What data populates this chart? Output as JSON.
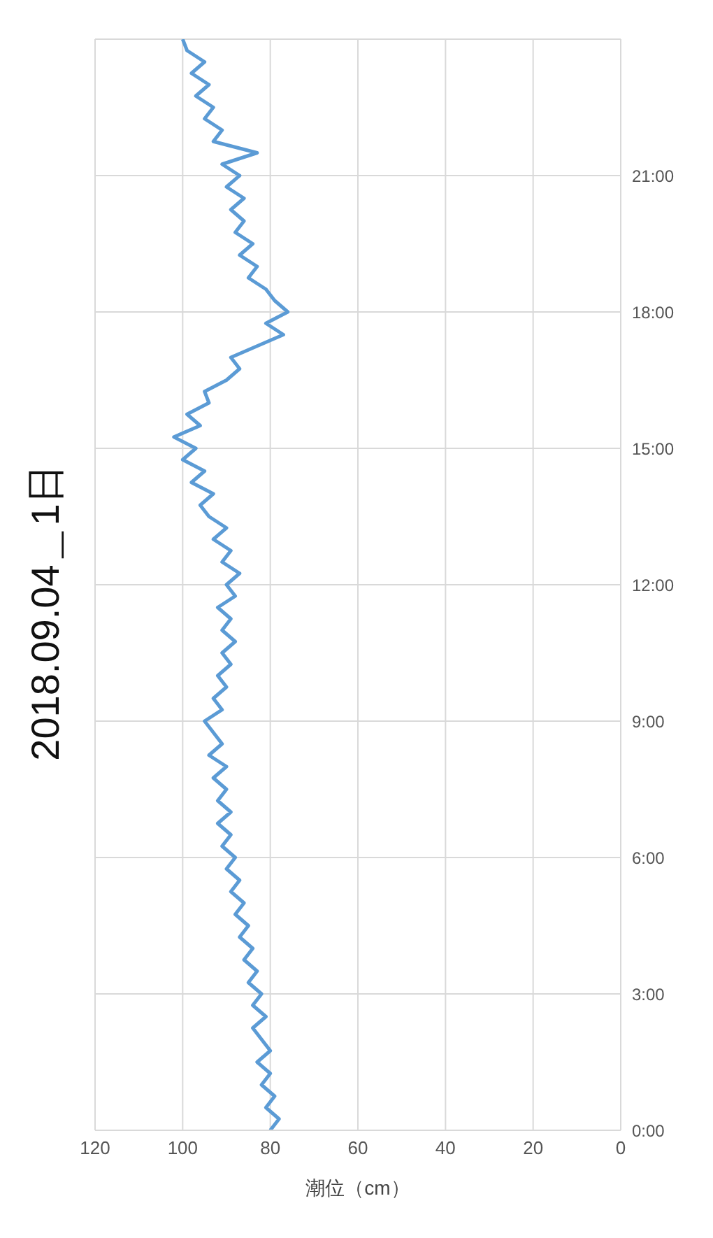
{
  "chart_data": {
    "type": "line",
    "title": "2018.09.04＿1日",
    "xlabel": "潮位（cm）",
    "series": [
      {
        "color": "#5b9bd5",
        "x": [
          80,
          78,
          81,
          79,
          82,
          80,
          83,
          80,
          82,
          84,
          81,
          84,
          82,
          85,
          83,
          86,
          84,
          87,
          85,
          88,
          86,
          89,
          87,
          90,
          88,
          91,
          89,
          92,
          89,
          92,
          90,
          93,
          90,
          94,
          91,
          93,
          95,
          91,
          93,
          90,
          92,
          89,
          91,
          88,
          91,
          89,
          92,
          88,
          90,
          87,
          91,
          89,
          93,
          90,
          94,
          96,
          93,
          98,
          95,
          100,
          97,
          102,
          96,
          99,
          94,
          95,
          90,
          87,
          89,
          83,
          77,
          81,
          76,
          79,
          81,
          85,
          83,
          87,
          84,
          88,
          86,
          89,
          86,
          90,
          87,
          91,
          83,
          93,
          91,
          95,
          93,
          97,
          94,
          98,
          95,
          99,
          100
        ],
        "values": [
          0,
          0.25,
          0.5,
          0.75,
          1,
          1.25,
          1.5,
          1.75,
          2,
          2.25,
          2.5,
          2.75,
          3,
          3.25,
          3.5,
          3.75,
          4,
          4.25,
          4.5,
          4.75,
          5,
          5.25,
          5.5,
          5.75,
          6,
          6.25,
          6.5,
          6.75,
          7,
          7.25,
          7.5,
          7.75,
          8,
          8.25,
          8.5,
          8.75,
          9,
          9.25,
          9.5,
          9.75,
          10,
          10.25,
          10.5,
          10.75,
          11,
          11.25,
          11.5,
          11.75,
          12,
          12.25,
          12.5,
          12.75,
          13,
          13.25,
          13.5,
          13.75,
          14,
          14.25,
          14.5,
          14.75,
          15,
          15.25,
          15.5,
          15.75,
          16,
          16.25,
          16.5,
          16.75,
          17,
          17.25,
          17.5,
          17.75,
          18,
          18.25,
          18.5,
          18.75,
          19,
          19.25,
          19.5,
          19.75,
          20,
          20.25,
          20.5,
          20.75,
          21,
          21.25,
          21.5,
          21.75,
          22,
          22.25,
          22.5,
          22.75,
          23,
          23.25,
          23.5,
          23.75,
          24
        ]
      }
    ],
    "xlim": [
      120,
      0
    ],
    "xticks": [
      120,
      100,
      80,
      60,
      40,
      20,
      0
    ],
    "ylim": [
      0,
      24
    ],
    "yticks": [
      {
        "value": 0,
        "label": "0:00"
      },
      {
        "value": 3,
        "label": "3:00"
      },
      {
        "value": 6,
        "label": "6:00"
      },
      {
        "value": 9,
        "label": "9:00"
      },
      {
        "value": 12,
        "label": "12:00"
      },
      {
        "value": 15,
        "label": "15:00"
      },
      {
        "value": 18,
        "label": "18:00"
      },
      {
        "value": 21,
        "label": "21:00"
      }
    ],
    "grid": true,
    "marker": "none",
    "line_style": "solid"
  }
}
